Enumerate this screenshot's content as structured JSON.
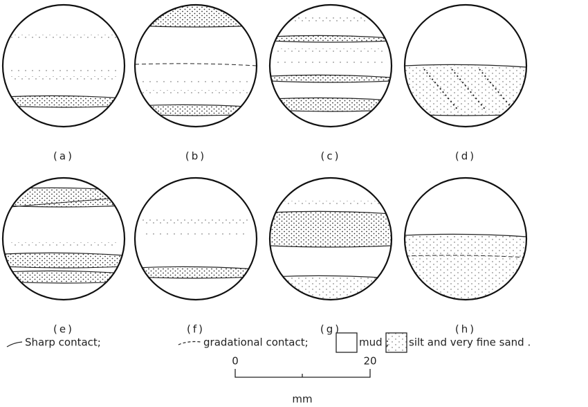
{
  "panels": [
    {
      "label": "(a)"
    },
    {
      "label": "(b)"
    },
    {
      "label": "(c)"
    },
    {
      "label": "(d)"
    },
    {
      "label": "(e)"
    },
    {
      "label": "(f)"
    },
    {
      "label": "(g)"
    },
    {
      "label": "(h)"
    }
  ],
  "legend": {
    "sharp": "Sharp contact;",
    "gradational": "gradational contact;",
    "mud": "mud ;",
    "silt": "silt and very fine sand ."
  },
  "scale": {
    "start": "0",
    "end": "20",
    "unit": "mm"
  }
}
